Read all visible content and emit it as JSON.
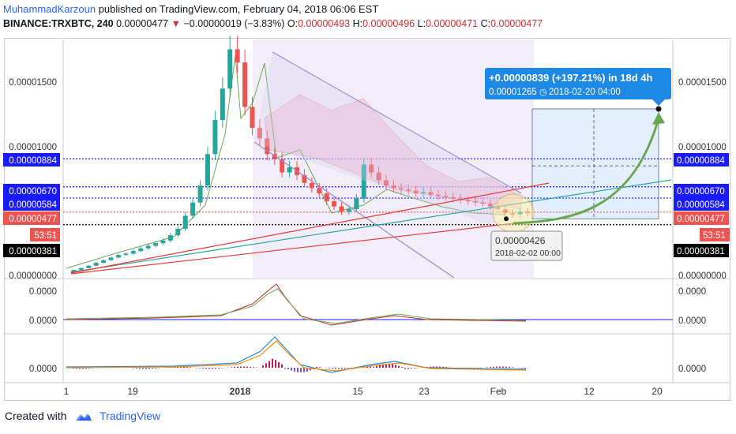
{
  "header": {
    "author": "MuhammadKarzoun",
    "published_text": "published on TradingView.com, February 04, 2018 06:06 EST",
    "symbol": "BINANCE:TRXBTC, 240",
    "last": "0.00000477",
    "change": "−0.00000019 (−3.83%)",
    "o_label": "O:",
    "o_value": "0.00000493",
    "h_label": "H:",
    "h_value": "0.00000496",
    "l_label": "L:",
    "l_value": "0.00000471",
    "c_label": "C:",
    "c_value": "0.00000477"
  },
  "footer": {
    "created_with": "Created with",
    "brand": "TradingView"
  },
  "colors": {
    "up": "#26a69a",
    "down": "#ef5350",
    "blue_label": "#1a1aff",
    "red_label": "#ef5350",
    "black_label": "#000000",
    "channel": "#9b8ec9",
    "arrow": "#6aa84f",
    "callout": "#1e88e5"
  },
  "chart_data": {
    "type": "candlestick",
    "x_ticks": [
      "1",
      "19",
      "2018",
      "15",
      "23",
      "Feb",
      "12",
      "20"
    ],
    "y_ticks": [
      "0.00001500",
      "0.00001000",
      "0.00000000"
    ],
    "price_labels": {
      "left": [
        {
          "text": "0.00000884",
          "value": 8.84e-06,
          "color": "blue"
        },
        {
          "text": "0.00000670",
          "value": 6.7e-06,
          "color": "blue"
        },
        {
          "text": "0.00000584",
          "value": 5.84e-06,
          "color": "blue"
        },
        {
          "text": "0.00000477",
          "value": 4.77e-06,
          "color": "red"
        },
        {
          "text": "53:51",
          "color": "red"
        },
        {
          "text": "0.00000381",
          "value": 3.81e-06,
          "color": "black"
        }
      ],
      "right": [
        {
          "text": "0.00000884",
          "value": 8.84e-06,
          "color": "blue"
        },
        {
          "text": "0.00000670",
          "value": 6.7e-06,
          "color": "blue"
        },
        {
          "text": "0.00000584",
          "value": 5.84e-06,
          "color": "blue"
        },
        {
          "text": "0.00000477",
          "value": 4.77e-06,
          "color": "red"
        },
        {
          "text": "53:51",
          "color": "red"
        },
        {
          "text": "0.00000381",
          "value": 3.81e-06,
          "color": "black"
        }
      ]
    },
    "callout": {
      "line1": "+0.00000839 (+197.21%) in 18d 4h",
      "line2a": "0.00001265",
      "line2b": "2018-02-20  04:00",
      "target": 1.265e-05
    },
    "tooltip": {
      "price": "0.00000426",
      "time": "2018-02-02 00:00",
      "value": 4.26e-06
    },
    "price_path": [
      2e-07,
      3.5e-07,
      5e-07,
      6.8e-07,
      9e-07,
      1.1e-06,
      1.3e-06,
      1.5e-06,
      1.6e-06,
      1.8e-06,
      2e-06,
      2.2e-06,
      2.4e-06,
      2.6e-06,
      3e-06,
      3.5e-06,
      4.5e-06,
      5.5e-06,
      6.8e-06,
      9.2e-06,
      1.18e-05,
      1.42e-05,
      1.72e-05,
      1.62e-05,
      1.28e-05,
      1.12e-05,
      1.04e-05,
      9.2e-06,
      8.8e-06,
      7.8e-06,
      8.2e-06,
      7.6e-06,
      7e-06,
      6.6e-06,
      6.2e-06,
      5.6e-06,
      5.2e-06,
      4.8e-06,
      5e-06,
      5.8e-06,
      8.4e-06,
      7.8e-06,
      7.2e-06,
      6.8e-06,
      6.6e-06,
      6.5e-06,
      6.4e-06,
      6.2e-06,
      6.3e-06,
      6.1e-06,
      6e-06,
      5.9e-06,
      5.8e-06,
      5.7e-06,
      5.6e-06,
      5.5e-06,
      5.4e-06,
      5.2e-06,
      5e-06,
      4.7e-06,
      4.6e-06,
      4.8e-06,
      4.7e-06
    ],
    "osc1_ticks": [
      "0.0000",
      "0.0000"
    ],
    "osc2_ticks": [
      "0.0000"
    ]
  }
}
